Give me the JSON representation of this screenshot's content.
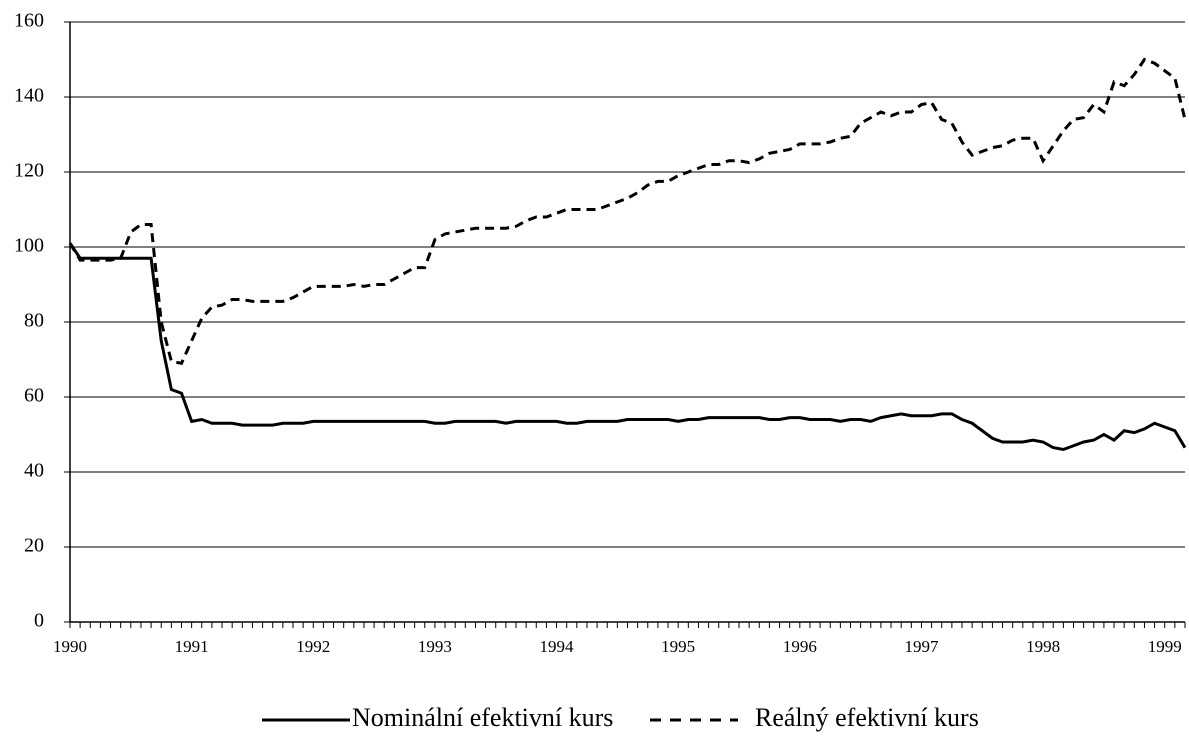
{
  "chart_data": {
    "type": "line",
    "categories": [
      "1990",
      null,
      null,
      null,
      null,
      null,
      null,
      null,
      null,
      null,
      null,
      null,
      "1991",
      null,
      null,
      null,
      null,
      null,
      null,
      null,
      null,
      null,
      null,
      null,
      "1992",
      null,
      null,
      null,
      null,
      null,
      null,
      null,
      null,
      null,
      null,
      null,
      "1993",
      null,
      null,
      null,
      null,
      null,
      null,
      null,
      null,
      null,
      null,
      null,
      "1994",
      null,
      null,
      null,
      null,
      null,
      null,
      null,
      null,
      null,
      null,
      null,
      "1995",
      null,
      null,
      null,
      null,
      null,
      null,
      null,
      null,
      null,
      null,
      null,
      "1996",
      null,
      null,
      null,
      null,
      null,
      null,
      null,
      null,
      null,
      null,
      null,
      "1997",
      null,
      null,
      null,
      null,
      null,
      null,
      null,
      null,
      null,
      null,
      null,
      "1998",
      null,
      null,
      null,
      null,
      null,
      null,
      null,
      null,
      null,
      null,
      null,
      "1999",
      null,
      null
    ],
    "series": [
      {
        "name": "Nominální efektivní kurs",
        "color": "#000000",
        "style": "solid",
        "values": [
          101,
          97,
          97,
          97,
          97,
          97,
          97,
          97,
          97,
          75,
          62,
          61,
          53.5,
          54,
          53,
          53,
          53,
          52.5,
          52.5,
          52.5,
          52.5,
          53,
          53,
          53,
          53.5,
          53.5,
          53.5,
          53.5,
          53.5,
          53.5,
          53.5,
          53.5,
          53.5,
          53.5,
          53.5,
          53.5,
          53,
          53,
          53.5,
          53.5,
          53.5,
          53.5,
          53.5,
          53,
          53.5,
          53.5,
          53.5,
          53.5,
          53.5,
          53,
          53,
          53.5,
          53.5,
          53.5,
          53.5,
          54,
          54,
          54,
          54,
          54,
          53.5,
          54,
          54,
          54.5,
          54.5,
          54.5,
          54.5,
          54.5,
          54.5,
          54,
          54,
          54.5,
          54.5,
          54,
          54,
          54,
          53.5,
          54,
          54,
          53.5,
          54.5,
          55,
          55.5,
          55,
          55,
          55,
          55.5,
          55.5,
          54,
          53,
          51,
          49,
          48,
          48,
          48,
          48.5,
          48,
          46.5,
          46,
          47,
          48,
          48.5,
          50,
          48.5,
          51,
          50.5,
          51.5,
          53,
          52,
          51,
          46.5
        ]
      },
      {
        "name": "Reálný efektivní kurs",
        "color": "#000000",
        "style": "dashed",
        "values": [
          101,
          96.5,
          96.5,
          96.5,
          96.5,
          97,
          104,
          106,
          106,
          80,
          69.5,
          69,
          75,
          81,
          84,
          84.5,
          86,
          86,
          85.5,
          85.5,
          85.5,
          85.5,
          86.5,
          88,
          89.5,
          89.5,
          89.5,
          89.5,
          90,
          89.5,
          90,
          90,
          91.5,
          93,
          94.5,
          94.5,
          102,
          103.5,
          104,
          104.5,
          105,
          105,
          105,
          105,
          105.5,
          107,
          108,
          108,
          109,
          110,
          110,
          110,
          110,
          111,
          112,
          113,
          114.5,
          116.5,
          117.5,
          117.5,
          119,
          120,
          121,
          122,
          122,
          123,
          123,
          122.5,
          123.5,
          125,
          125.5,
          126,
          127.5,
          127.5,
          127.5,
          128,
          129,
          129.5,
          133,
          134.5,
          136,
          135,
          136,
          136,
          138,
          138.5,
          134,
          133,
          128,
          124.5,
          125.5,
          126.5,
          127,
          128.5,
          129,
          129,
          123,
          127,
          131,
          134,
          134.5,
          138,
          136,
          144,
          143,
          146,
          150,
          149,
          147,
          145,
          134
        ]
      }
    ],
    "ylim": [
      0,
      160
    ],
    "yticks": [
      0,
      20,
      40,
      60,
      80,
      100,
      120,
      140,
      160
    ],
    "grid": true
  }
}
